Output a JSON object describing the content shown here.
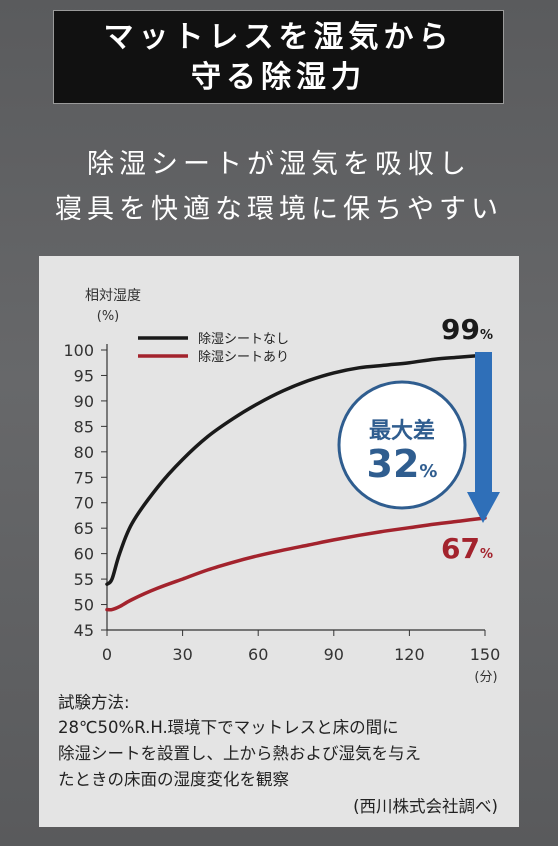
{
  "header": {
    "title_line1": "マットレスを湿気から",
    "title_line2": "守る除湿力"
  },
  "subtitle": {
    "line1": "除湿シートが湿気を吸収し",
    "line2": "寝具を快適な環境に保ちやすい"
  },
  "chart_data": {
    "type": "line",
    "ylabel": "相対湿度",
    "yunit": "(%)",
    "xunit": "(分)",
    "ylim": [
      45,
      100
    ],
    "xlim": [
      0,
      150
    ],
    "yticks": [
      100,
      95,
      90,
      85,
      80,
      75,
      70,
      65,
      60,
      55,
      50,
      45
    ],
    "xticks": [
      0,
      30,
      60,
      90,
      120,
      150
    ],
    "legend_position": "top-left",
    "series": [
      {
        "name": "除湿シートなし",
        "color": "#1a1a1a",
        "x": [
          0,
          2,
          5,
          10,
          20,
          30,
          40,
          50,
          60,
          70,
          80,
          90,
          100,
          110,
          120,
          130,
          140,
          150
        ],
        "y": [
          54,
          55,
          60,
          66,
          73,
          78.5,
          83,
          86.5,
          89.5,
          92,
          94,
          95.5,
          96.5,
          97,
          97.5,
          98.2,
          98.6,
          99
        ]
      },
      {
        "name": "除湿シートあり",
        "color": "#a3232d",
        "x": [
          0,
          2,
          5,
          10,
          20,
          30,
          40,
          50,
          60,
          70,
          80,
          90,
          100,
          110,
          120,
          130,
          140,
          150
        ],
        "y": [
          49,
          49,
          49.6,
          51,
          53.2,
          55,
          56.8,
          58.3,
          59.6,
          60.7,
          61.7,
          62.7,
          63.6,
          64.4,
          65.1,
          65.8,
          66.4,
          67
        ]
      }
    ],
    "annotations": {
      "end_top_value": "99",
      "end_top_unit": "%",
      "end_bottom_value": "67",
      "end_bottom_unit": "%",
      "diff_label": "最大差",
      "diff_value": "32",
      "diff_unit": "%",
      "arrow_color": "#2f6fb8",
      "circle_color": "#2f5d8f"
    }
  },
  "method": {
    "heading": "試験方法:",
    "line1": "28℃50%R.H.環境下でマットレスと床の間に",
    "line2": "除湿シートを設置し、上から熱および湿気を与え",
    "line3": "たときの床面の湿度変化を観察",
    "source": "(西川株式会社調べ)"
  }
}
